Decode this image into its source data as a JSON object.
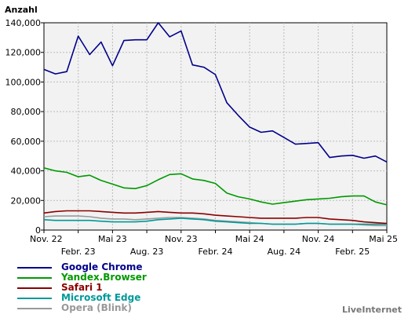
{
  "chart_data": {
    "type": "line",
    "ylabel": "Anzahl",
    "ylim": [
      0,
      140000
    ],
    "yticks": [
      "0",
      "20,000",
      "40,000",
      "60,000",
      "80,000",
      "100,000",
      "120,000",
      "140,000"
    ],
    "x_ticks_upper": [
      "Nov. 22",
      "Mai 23",
      "Nov. 23",
      "Mai 24",
      "Nov. 24",
      "Mai 25"
    ],
    "x_ticks_lower": [
      "Febr. 23",
      "Aug. 23",
      "Febr. 24",
      "Aug. 24",
      "Febr. 25"
    ],
    "x": [
      "2022-11",
      "2022-12",
      "2023-01",
      "2023-02",
      "2023-03",
      "2023-04",
      "2023-05",
      "2023-06",
      "2023-07",
      "2023-08",
      "2023-09",
      "2023-10",
      "2023-11",
      "2023-12",
      "2024-01",
      "2024-02",
      "2024-03",
      "2024-04",
      "2024-05",
      "2024-06",
      "2024-07",
      "2024-08",
      "2024-09",
      "2024-10",
      "2024-11",
      "2024-12",
      "2025-01",
      "2025-02",
      "2025-03",
      "2025-04",
      "2025-05"
    ],
    "grid": true,
    "legend_placement": "bottom-left",
    "series": [
      {
        "name": "Google Chrome",
        "color": "#00008b",
        "values": [
          108500,
          105500,
          107000,
          131000,
          118500,
          127000,
          111000,
          128000,
          128500,
          128500,
          140000,
          130500,
          134500,
          111500,
          110000,
          105000,
          86000,
          77500,
          69500,
          66000,
          67000,
          62500,
          58000,
          58500,
          59000,
          49000,
          50000,
          50500,
          48500,
          50000,
          46000
        ]
      },
      {
        "name": "Yandex.Browser",
        "color": "#009900",
        "values": [
          42000,
          40000,
          39000,
          36000,
          37000,
          33500,
          31000,
          28500,
          28000,
          30000,
          34000,
          37500,
          38000,
          34500,
          33500,
          31500,
          25000,
          22500,
          21000,
          19000,
          17500,
          18500,
          19500,
          20500,
          21000,
          21500,
          22500,
          23000,
          23000,
          19000,
          17000
        ]
      },
      {
        "name": "Safari 1",
        "color": "#8b0000",
        "values": [
          11500,
          12500,
          13000,
          13000,
          13000,
          12500,
          12000,
          11500,
          11500,
          12000,
          12500,
          12000,
          11500,
          11500,
          11000,
          10000,
          9500,
          9000,
          8500,
          8000,
          8000,
          8000,
          8000,
          8500,
          8500,
          7500,
          7000,
          6500,
          5500,
          5000,
          4500
        ]
      },
      {
        "name": "Microsoft Edge",
        "color": "#009999",
        "values": [
          7000,
          6500,
          6500,
          6500,
          6500,
          6000,
          5500,
          5500,
          5500,
          6000,
          7000,
          7500,
          8000,
          7500,
          7000,
          6000,
          5500,
          5000,
          4500,
          4500,
          4000,
          4000,
          4000,
          4500,
          4500,
          4000,
          4000,
          4000,
          4000,
          4000,
          4000
        ]
      },
      {
        "name": "Opera (Blink)",
        "color": "#999999",
        "values": [
          9000,
          9500,
          9500,
          9500,
          9000,
          8000,
          7500,
          7500,
          7000,
          7500,
          8000,
          8500,
          8500,
          8000,
          7500,
          6500,
          6000,
          5500,
          5000,
          4500,
          4000,
          4000,
          4000,
          4500,
          4500,
          4000,
          4000,
          4000,
          3500,
          3000,
          3000
        ]
      }
    ]
  },
  "credit": "LiveInternet"
}
